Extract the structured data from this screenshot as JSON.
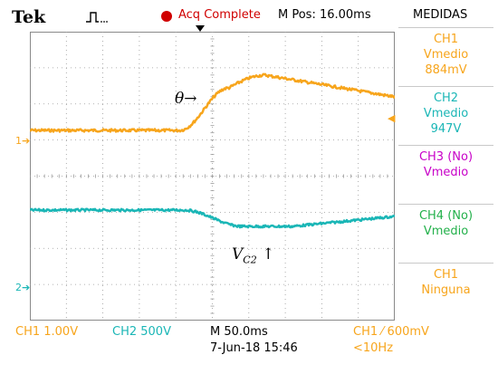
{
  "header": {
    "brand": "Tek",
    "trigger_icon": "trigger-pulse-icon",
    "status_icon": "record-dot-icon",
    "status": "Acq Complete",
    "mpos": "M Pos: 16.00ms",
    "panel_title": "MEDIDAS"
  },
  "colors": {
    "ch1": "#f7a51c",
    "ch2": "#1ab6b6",
    "ch3": "#c800c8",
    "ch4": "#22b04a",
    "status": "#d00000"
  },
  "measurements": [
    {
      "line1": "CH1",
      "line2": "Vmedio",
      "line3": "884mV",
      "color": "ch1"
    },
    {
      "line1": "CH2",
      "line2": "Vmedio",
      "line3": "947V",
      "color": "ch2"
    },
    {
      "line1": "CH3 (No)",
      "line2": "Vmedio",
      "line3": "",
      "color": "ch3"
    },
    {
      "line1": "CH4 (No)",
      "line2": "Vmedio",
      "line3": "",
      "color": "ch4"
    },
    {
      "line1": "CH1",
      "line2": "Ninguna",
      "line3": "",
      "color": "ch1"
    }
  ],
  "markers": {
    "ch1": "1",
    "ch2": "2"
  },
  "annotations": {
    "theta": "θ→",
    "vc2_main": "V",
    "vc2_sub": "C2",
    "vc2_arrow": "↑"
  },
  "bottom_bar": {
    "ch1_scale": "CH1  1.00V",
    "ch2_scale": "CH2  500V",
    "timebase": "M 50.0ms",
    "date": "7-Jun-18 15:46",
    "trigger": "CH1  ⁄  600mV",
    "freq": "<10Hz"
  }
}
